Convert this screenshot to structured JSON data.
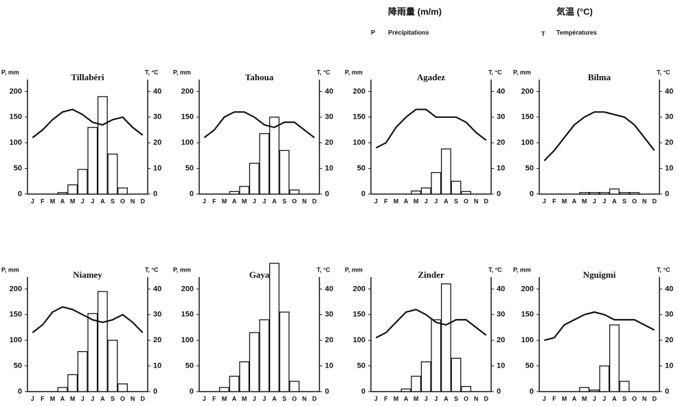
{
  "legend": [
    {
      "symbol": "P",
      "heading": "降雨量 (m/m)",
      "label": "Précipitations"
    },
    {
      "symbol": "T",
      "heading": "気温 (°C)",
      "label": "Températures"
    }
  ],
  "chart_data": [
    {
      "type": "combo",
      "title": "Tillabéri",
      "ylabel": "P, mm",
      "y2label": "T, °C",
      "categories": [
        "J",
        "F",
        "M",
        "A",
        "M",
        "J",
        "J",
        "A",
        "S",
        "O",
        "N",
        "D"
      ],
      "ylim": [
        0,
        250
      ],
      "yticks": [
        0,
        50,
        100,
        150,
        200
      ],
      "y2lim": [
        0,
        50
      ],
      "y2ticks": [
        0,
        10,
        20,
        30,
        40
      ],
      "series": [
        {
          "type": "bar",
          "color": "#ffffff",
          "values": [
            0,
            0,
            0,
            3,
            18,
            48,
            130,
            190,
            78,
            12,
            0,
            0
          ]
        },
        {
          "type": "line",
          "axis": "y2",
          "color": "#111111",
          "values": [
            22,
            25,
            29,
            32,
            33,
            31,
            28,
            27,
            29,
            30,
            26,
            23
          ]
        }
      ]
    },
    {
      "type": "combo",
      "title": "Tahoua",
      "ylabel": "P, mm",
      "y2label": "T, °C",
      "categories": [
        "J",
        "F",
        "M",
        "A",
        "M",
        "J",
        "J",
        "A",
        "S",
        "O",
        "N",
        "D"
      ],
      "ylim": [
        0,
        250
      ],
      "yticks": [
        0,
        50,
        100,
        150,
        200
      ],
      "y2lim": [
        0,
        50
      ],
      "y2ticks": [
        0,
        10,
        20,
        30,
        40
      ],
      "series": [
        {
          "type": "bar",
          "color": "#ffffff",
          "values": [
            0,
            0,
            0,
            5,
            15,
            60,
            118,
            150,
            85,
            8,
            0,
            0
          ]
        },
        {
          "type": "line",
          "axis": "y2",
          "color": "#111111",
          "values": [
            22,
            25,
            30,
            32,
            32,
            30,
            27,
            26,
            28,
            28,
            25,
            22
          ]
        }
      ]
    },
    {
      "type": "combo",
      "title": "Agadez",
      "ylabel": "P, mm",
      "y2label": "T, °C",
      "categories": [
        "J",
        "F",
        "M",
        "A",
        "M",
        "J",
        "J",
        "A",
        "S",
        "O",
        "N",
        "D"
      ],
      "ylim": [
        0,
        250
      ],
      "yticks": [
        0,
        50,
        100,
        150,
        200
      ],
      "y2lim": [
        0,
        50
      ],
      "y2ticks": [
        0,
        10,
        20,
        30,
        40
      ],
      "series": [
        {
          "type": "bar",
          "color": "#ffffff",
          "values": [
            0,
            0,
            0,
            0,
            6,
            12,
            42,
            88,
            25,
            5,
            0,
            0
          ]
        },
        {
          "type": "line",
          "axis": "y2",
          "color": "#111111",
          "values": [
            18,
            20,
            26,
            30,
            33,
            33,
            30,
            30,
            30,
            28,
            24,
            21
          ]
        }
      ]
    },
    {
      "type": "combo",
      "title": "Bilma",
      "ylabel": "P, mm",
      "y2label": "T, °C",
      "categories": [
        "J",
        "F",
        "M",
        "A",
        "M",
        "J",
        "J",
        "A",
        "S",
        "O",
        "N",
        "D"
      ],
      "ylim": [
        0,
        250
      ],
      "yticks": [
        0,
        50,
        100,
        150,
        200
      ],
      "y2lim": [
        0,
        50
      ],
      "y2ticks": [
        0,
        10,
        20,
        30,
        40
      ],
      "series": [
        {
          "type": "bar",
          "color": "#ffffff",
          "values": [
            0,
            0,
            0,
            0,
            3,
            3,
            3,
            10,
            3,
            3,
            0,
            0
          ]
        },
        {
          "type": "line",
          "axis": "y2",
          "color": "#111111",
          "values": [
            13,
            17,
            22,
            27,
            30,
            32,
            32,
            31,
            30,
            27,
            22,
            17
          ]
        }
      ]
    },
    {
      "type": "combo",
      "title": "Niamey",
      "ylabel": "P, mm",
      "y2label": "T, °C",
      "categories": [
        "J",
        "F",
        "M",
        "A",
        "M",
        "J",
        "J",
        "A",
        "S",
        "O",
        "N",
        "D"
      ],
      "ylim": [
        0,
        250
      ],
      "yticks": [
        0,
        50,
        100,
        150,
        200
      ],
      "y2lim": [
        0,
        50
      ],
      "y2ticks": [
        0,
        10,
        20,
        30,
        40
      ],
      "series": [
        {
          "type": "bar",
          "color": "#ffffff",
          "values": [
            0,
            0,
            0,
            8,
            33,
            78,
            152,
            195,
            100,
            15,
            0,
            0
          ]
        },
        {
          "type": "line",
          "axis": "y2",
          "color": "#111111",
          "values": [
            23,
            26,
            31,
            33,
            32,
            30,
            28,
            27,
            28,
            30,
            27,
            23
          ]
        }
      ]
    },
    {
      "type": "combo",
      "title": "Gaya",
      "ylabel": "P, mm",
      "y2label": "T, °C",
      "categories": [
        "J",
        "F",
        "M",
        "A",
        "M",
        "J",
        "J",
        "A",
        "S",
        "O",
        "N",
        "D"
      ],
      "ylim": [
        0,
        250
      ],
      "yticks": [
        0,
        50,
        100,
        150,
        200
      ],
      "y2lim": [
        0,
        50
      ],
      "y2ticks": [
        0,
        10,
        20,
        30,
        40
      ],
      "series": [
        {
          "type": "bar",
          "color": "#ffffff",
          "values": [
            0,
            0,
            8,
            30,
            58,
            115,
            140,
            250,
            155,
            20,
            0,
            0
          ]
        }
      ]
    },
    {
      "type": "combo",
      "title": "Zinder",
      "ylabel": "P, mm",
      "y2label": "T, °C",
      "categories": [
        "J",
        "F",
        "M",
        "A",
        "M",
        "J",
        "J",
        "A",
        "S",
        "O",
        "N",
        "D"
      ],
      "ylim": [
        0,
        250
      ],
      "yticks": [
        0,
        50,
        100,
        150,
        200
      ],
      "y2lim": [
        0,
        50
      ],
      "y2ticks": [
        0,
        10,
        20,
        30,
        40
      ],
      "series": [
        {
          "type": "bar",
          "color": "#ffffff",
          "values": [
            0,
            0,
            0,
            5,
            30,
            58,
            140,
            210,
            65,
            10,
            0,
            0
          ]
        },
        {
          "type": "line",
          "axis": "y2",
          "color": "#111111",
          "values": [
            21,
            23,
            27,
            31,
            32,
            30,
            27,
            26,
            28,
            28,
            25,
            22
          ]
        }
      ]
    },
    {
      "type": "combo",
      "title": "Nguigmi",
      "ylabel": "P, mm",
      "y2label": "T, °C",
      "categories": [
        "J",
        "F",
        "M",
        "A",
        "M",
        "J",
        "J",
        "A",
        "S",
        "O",
        "N",
        "D"
      ],
      "ylim": [
        0,
        250
      ],
      "yticks": [
        0,
        50,
        100,
        150,
        200
      ],
      "y2lim": [
        0,
        50
      ],
      "y2ticks": [
        0,
        10,
        20,
        30,
        40
      ],
      "series": [
        {
          "type": "bar",
          "color": "#ffffff",
          "values": [
            0,
            0,
            0,
            0,
            8,
            3,
            50,
            130,
            20,
            0,
            0,
            0
          ]
        },
        {
          "type": "line",
          "axis": "y2",
          "color": "#111111",
          "values": [
            20,
            21,
            26,
            28,
            30,
            31,
            30,
            28,
            28,
            28,
            26,
            24
          ]
        }
      ]
    }
  ]
}
